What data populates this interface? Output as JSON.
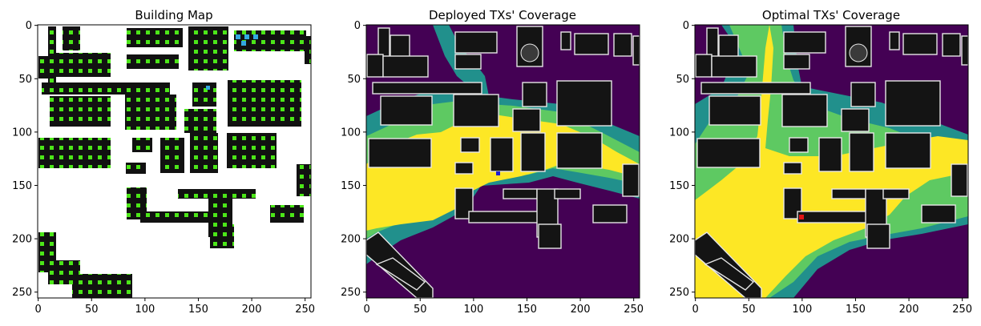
{
  "panels": [
    {
      "title": "Building Map"
    },
    {
      "title": "Deployed TXs' Coverage"
    },
    {
      "title": "Optimal TXs' Coverage"
    }
  ],
  "x_ticks": [
    "0",
    "50",
    "100",
    "150",
    "200",
    "250"
  ],
  "y_ticks": [
    "0",
    "50",
    "100",
    "150",
    "200",
    "250"
  ],
  "colors": {
    "building_fill": "#141414",
    "building_edge": "#e6e6e6",
    "map_background": "#ffffff",
    "candidate_marker": "#4ce619",
    "cluster_marker": "#33a8e0",
    "coverage_background": "#440154",
    "coverage_dark_teal": "#21908c",
    "coverage_light_green": "#5ec962",
    "coverage_yellow": "#fde725",
    "deployed_tx": "#1f1fd1",
    "optimal_tx": "#e01515"
  }
}
